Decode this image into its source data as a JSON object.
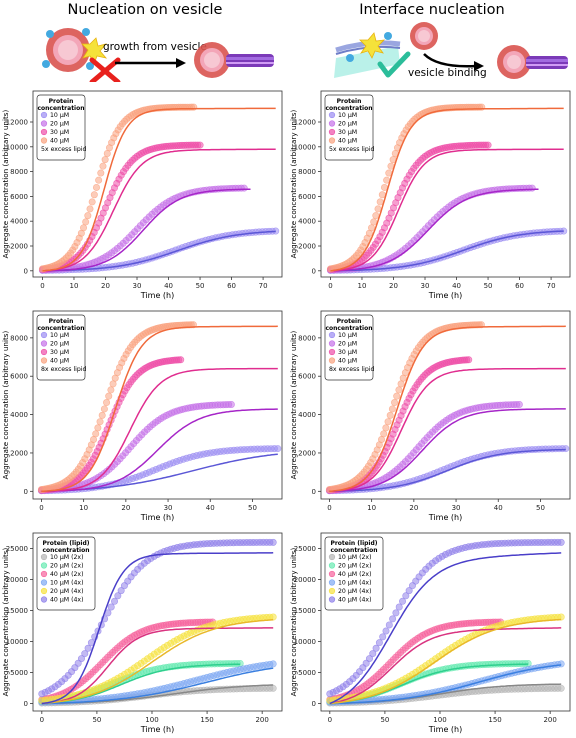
{
  "headers": {
    "left": "Nucleation on vesicle",
    "right": "Interface nucleation"
  },
  "schematics": {
    "left_label": "growth from vesicle",
    "right_label": "vesicle binding"
  },
  "colors": {
    "s10": "#9b8cf2",
    "s20": "#c571e8",
    "s30": "#ee4fa8",
    "s40": "#f9a27f",
    "f10": "#5b57d6",
    "f20": "#a626c8",
    "f30": "#e02d8f",
    "f40": "#f06a3b",
    "p10_2x": "#b5b5b5",
    "p20_2x": "#66e9b0",
    "p40_2x": "#f6639c",
    "p10_4x": "#7ea8f2",
    "p20_4x": "#f6e13e",
    "p40_4x": "#8f80ea",
    "l10_2x": "#888888",
    "l20_2x": "#2fcf8e",
    "l40_2x": "#d93380",
    "l10_4x": "#3a7fe0",
    "l20_4x": "#e9b82a",
    "l40_4x": "#4a3fc9"
  },
  "chart_data": [
    {
      "id": "row1",
      "type": "scatter",
      "xlabel": "Time (h)",
      "ylabel": "Aggregate concentration (arbitrary units)",
      "xlim": [
        -3,
        76
      ],
      "ylim": [
        -500,
        14500
      ],
      "xticks": [
        0,
        10,
        20,
        30,
        40,
        50,
        60,
        70
      ],
      "yticks": [
        0,
        2000,
        4000,
        6000,
        8000,
        10000,
        12000
      ],
      "legend_title": "Protein\nconcentration",
      "legend_note": "5x excess lipid",
      "legend_labels": [
        "10 μM",
        "20 μM",
        "30 μM",
        "40 μM"
      ],
      "series": [
        {
          "name": "10 μM",
          "plateau": 3300,
          "mid": 42,
          "k": 0.11,
          "data_end": 74,
          "fit_end": 74,
          "fit_mid_left": 43,
          "fit_k_left": 0.105,
          "fit_mid_right": 42,
          "fit_k_right": 0.11,
          "color": "s10",
          "fit": "f10"
        },
        {
          "name": "20 μM",
          "plateau": 6700,
          "mid": 30,
          "k": 0.16,
          "data_end": 64,
          "fit_end": 66,
          "fit_plateau": 6600,
          "fit_mid_left": 32,
          "fit_k_left": 0.17,
          "fit_mid_right": 31,
          "fit_k_right": 0.16,
          "color": "s20",
          "fit": "f20"
        },
        {
          "name": "30 μM",
          "plateau": 10150,
          "mid": 20,
          "k": 0.23,
          "data_end": 50,
          "fit_end": 74,
          "fit_plateau": 9800,
          "fit_mid_left": 22.5,
          "fit_k_left": 0.22,
          "fit_mid_right": 21.5,
          "fit_k_right": 0.24,
          "color": "s30",
          "fit": "f30"
        },
        {
          "name": "40 μM",
          "plateau": 13200,
          "mid": 17,
          "k": 0.26,
          "data_end": 48,
          "fit_end": 74,
          "fit_plateau": 13100,
          "fit_mid_left": 19.5,
          "fit_k_left": 0.28,
          "fit_mid_right": 18,
          "fit_k_right": 0.27,
          "color": "s40",
          "fit": "f40"
        }
      ]
    },
    {
      "id": "row2",
      "type": "scatter",
      "xlabel": "Time (h)",
      "ylabel": "Aggregate concentration (arbitrary units)",
      "xlim": [
        -2,
        57
      ],
      "ylim": [
        -400,
        9400
      ],
      "xticks": [
        0,
        10,
        20,
        30,
        40,
        50
      ],
      "yticks": [
        0,
        2000,
        4000,
        6000,
        8000
      ],
      "legend_title": "Protein\nconcentration",
      "legend_note": "8x excess lipid",
      "legend_labels": [
        "10 μM",
        "20 μM",
        "30 μM",
        "40 μM"
      ],
      "series": [
        {
          "name": "10 μM",
          "plateau": 2250,
          "mid": 27,
          "k": 0.16,
          "data_end": 56,
          "fit_end": 56,
          "fit_plateau": 2200,
          "fit_mid_left": 36,
          "fit_k_left": 0.1,
          "fit_mid_right": 28,
          "fit_k_right": 0.16,
          "color": "s10",
          "fit": "f10"
        },
        {
          "name": "20 μM",
          "plateau": 4550,
          "mid": 21,
          "k": 0.22,
          "data_end": 45,
          "fit_end": 56,
          "fit_plateau": 4300,
          "fit_mid_left": 27.5,
          "fit_k_left": 0.2,
          "fit_mid_right": 22,
          "fit_k_right": 0.22,
          "color": "s20",
          "fit": "f20"
        },
        {
          "name": "30 μM",
          "plateau": 6900,
          "mid": 16,
          "k": 0.3,
          "data_end": 33,
          "fit_end": 56,
          "fit_plateau": 6400,
          "fit_mid_left": 21,
          "fit_k_left": 0.28,
          "fit_mid_right": 17,
          "fit_k_right": 0.3,
          "color": "s30",
          "fit": "f30"
        },
        {
          "name": "40 μM",
          "plateau": 8700,
          "mid": 15,
          "k": 0.3,
          "data_end": 36,
          "fit_end": 56,
          "fit_plateau": 8600,
          "fit_mid_left": 17.5,
          "fit_k_left": 0.32,
          "fit_mid_right": 16,
          "fit_k_right": 0.32,
          "color": "s40",
          "fit": "f40"
        }
      ]
    },
    {
      "id": "row3",
      "type": "scatter",
      "xlabel": "Time (h)",
      "ylabel": "Aggregate concentration (arbitrary units)",
      "xlim": [
        -8,
        218
      ],
      "ylim": [
        -1200,
        27500
      ],
      "xticks": [
        0,
        50,
        100,
        150,
        200
      ],
      "yticks": [
        0,
        5000,
        10000,
        15000,
        20000,
        25000
      ],
      "legend_title": "Protein (lipid)\nconcentration",
      "legend_note": "",
      "legend_labels": [
        "10 μM (2x)",
        "20 μM (2x)",
        "40 μM (2x)",
        "10 μM (4x)",
        "20 μM (4x)",
        "40 μM (4x)"
      ],
      "series": [
        {
          "name": "10 μM (2x)",
          "plateau": 2500,
          "mid": 95,
          "k": 0.035,
          "data_end": 210,
          "fit_end": 210,
          "fit_plateau": 3200,
          "fit_mid_left": 120,
          "fit_k_left": 0.03,
          "fit_mid_right": 100,
          "fit_k_right": 0.035,
          "color": "p10_2x",
          "fit": "l10_2x"
        },
        {
          "name": "20 μM (2x)",
          "plateau": 6500,
          "mid": 65,
          "k": 0.045,
          "data_end": 180,
          "fit_end": 180,
          "fit_plateau": 6400,
          "fit_mid_left": 72,
          "fit_k_left": 0.045,
          "fit_mid_right": 66,
          "fit_k_right": 0.045,
          "color": "p20_2x",
          "fit": "l20_2x"
        },
        {
          "name": "40 μM (2x)",
          "plateau": 13200,
          "mid": 55,
          "k": 0.055,
          "data_end": 155,
          "fit_end": 210,
          "fit_plateau": 12200,
          "fit_mid_left": 60,
          "fit_k_left": 0.07,
          "fit_mid_right": 56,
          "fit_k_right": 0.055,
          "color": "p40_2x",
          "fit": "l40_2x"
        },
        {
          "name": "10 μM (4x)",
          "plateau": 7500,
          "mid": 140,
          "k": 0.025,
          "data_end": 210,
          "fit_end": 210,
          "fit_plateau": 7000,
          "fit_mid_left": 150,
          "fit_k_left": 0.025,
          "fit_mid_right": 135,
          "fit_k_right": 0.028,
          "color": "p10_4x",
          "fit": "l10_4x"
        },
        {
          "name": "20 μM (4x)",
          "plateau": 14200,
          "mid": 95,
          "k": 0.035,
          "data_end": 210,
          "fit_end": 210,
          "fit_plateau": 13800,
          "fit_mid_left": 100,
          "fit_k_left": 0.035,
          "fit_mid_right": 95,
          "fit_k_right": 0.035,
          "color": "p20_4x",
          "fit": "l20_4x"
        },
        {
          "name": "40 μM (4x)",
          "plateau": 26000,
          "mid": 55,
          "k": 0.05,
          "data_end": 210,
          "fit_end": 210,
          "fit_plateau": 24300,
          "fit_mid_left": 52,
          "fit_k_left": 0.09,
          "fit_mid_right": 55,
          "fit_k_right": 0.05,
          "color": "p40_4x",
          "fit": "l40_4x"
        }
      ]
    }
  ]
}
